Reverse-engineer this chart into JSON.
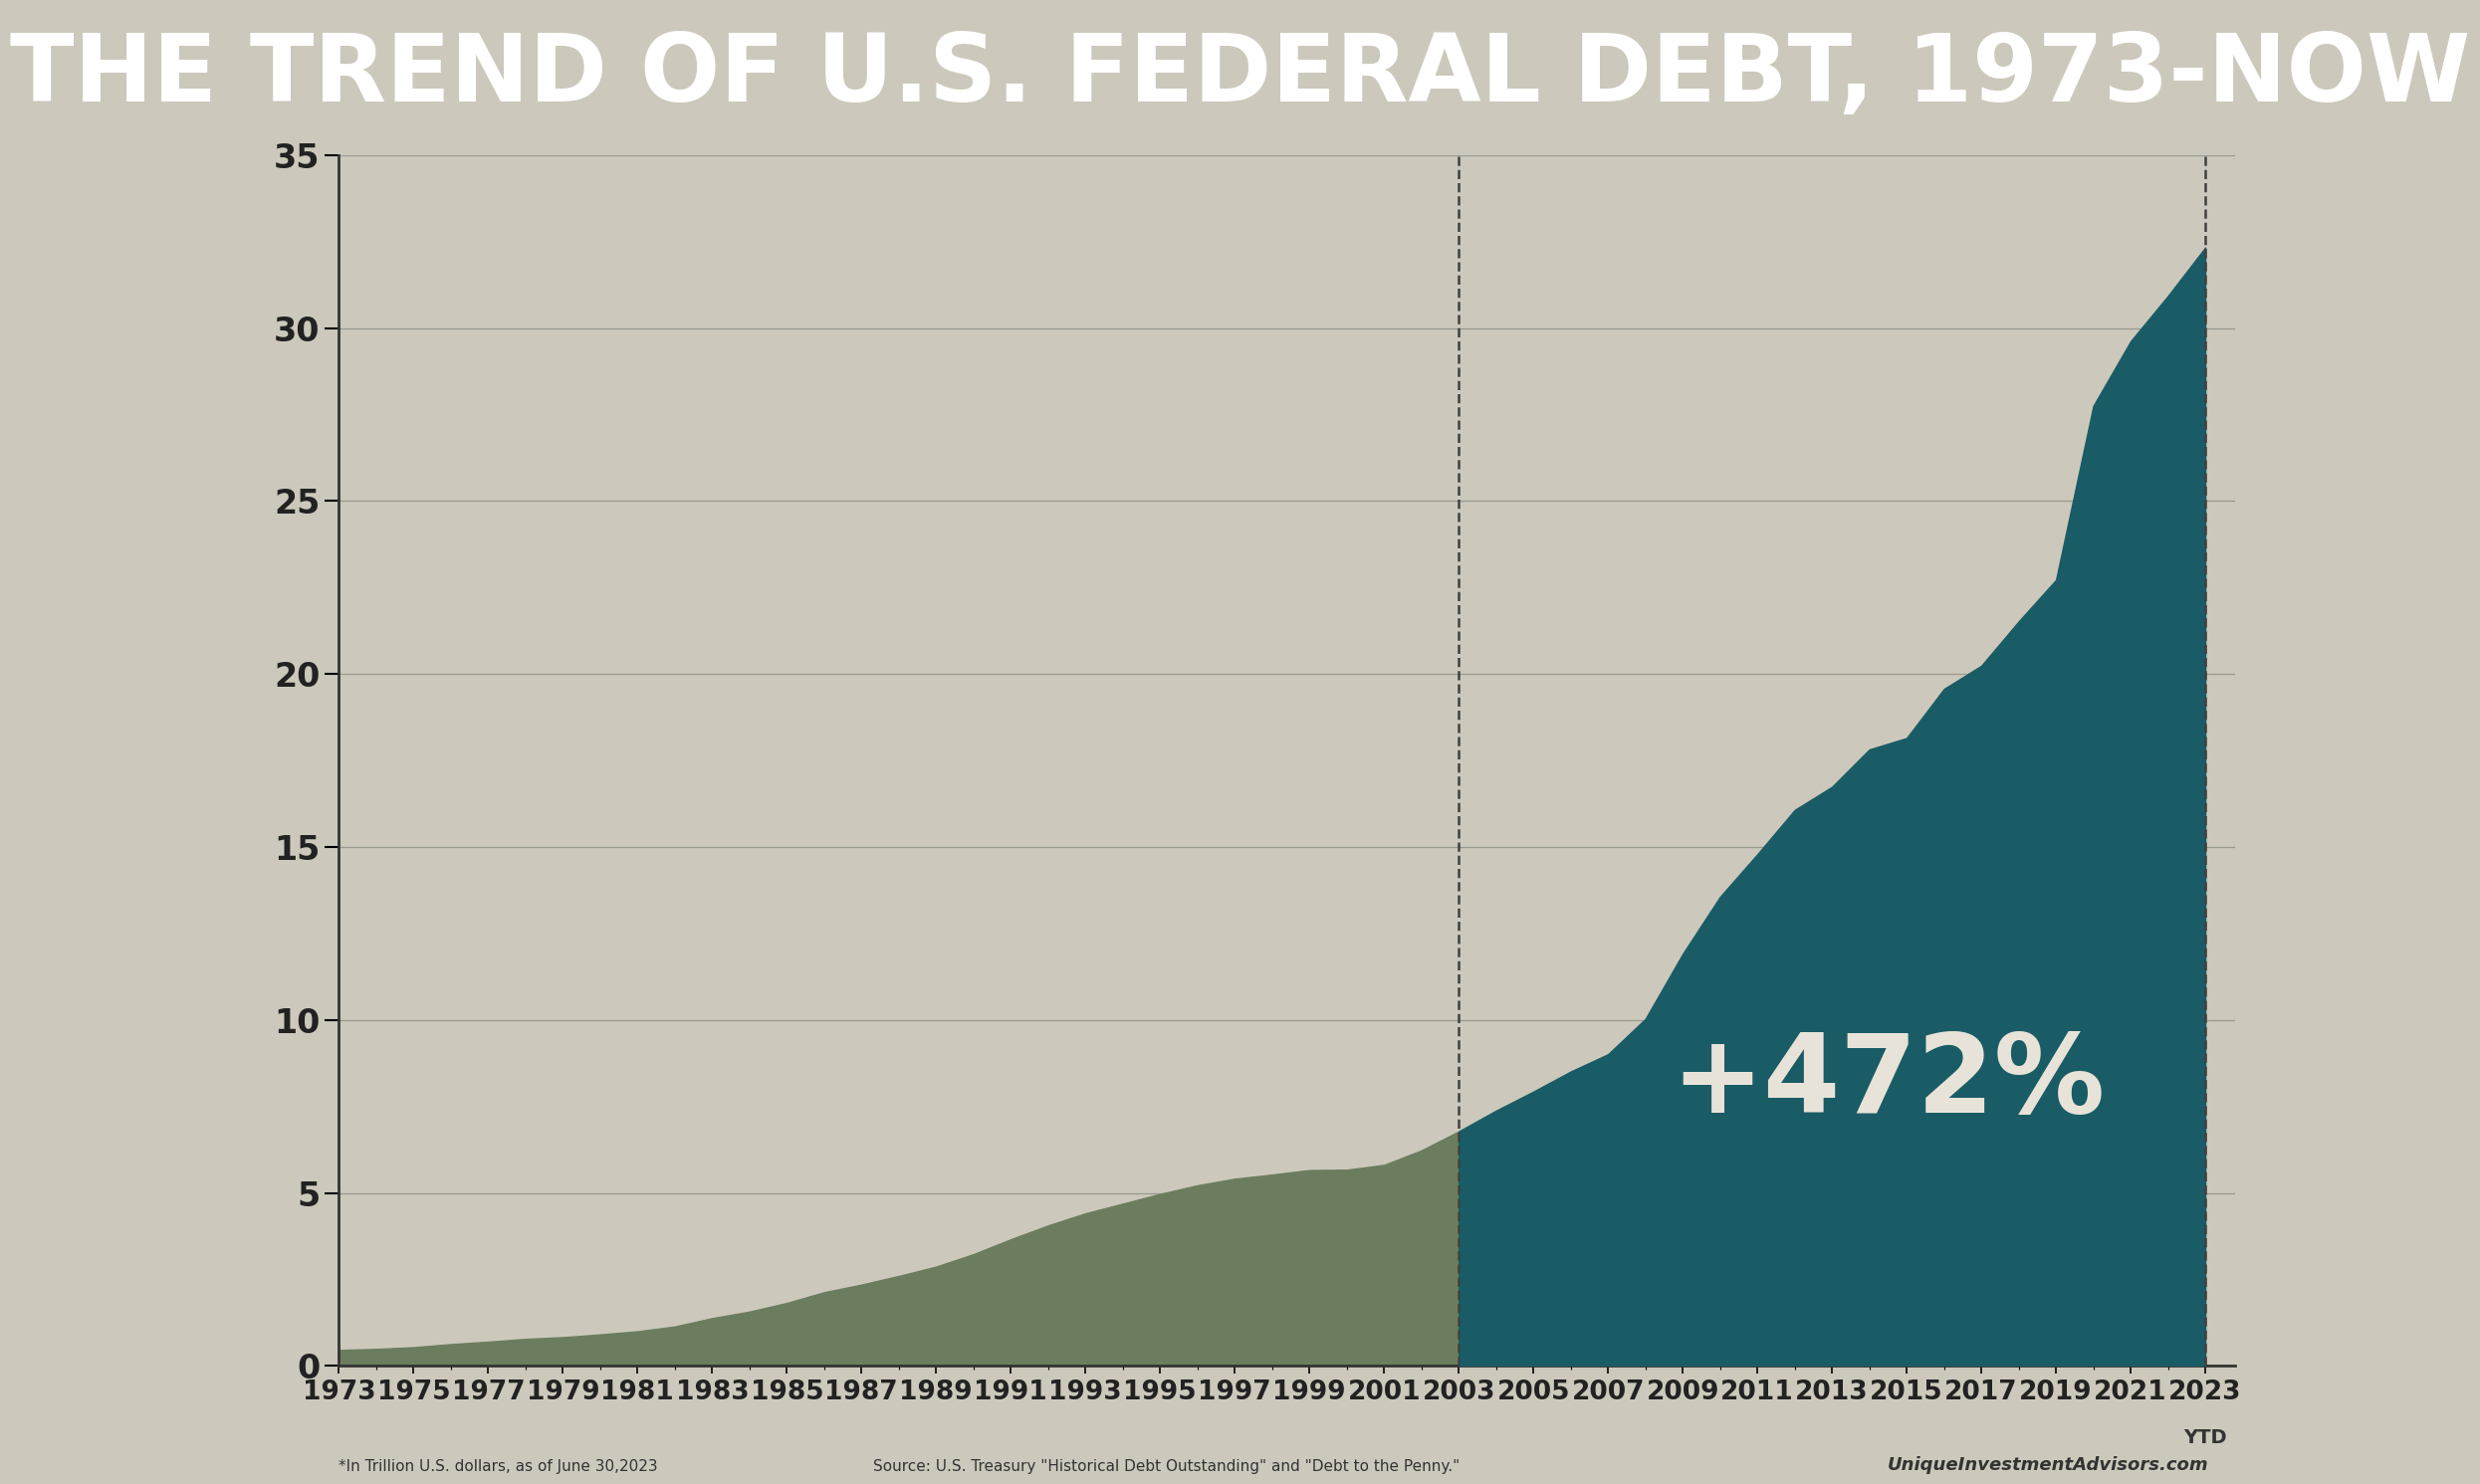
{
  "title": "THE TREND OF U.S. FEDERAL DEBT, 1973-NOW",
  "title_bg_color": "#2A6B6E",
  "title_text_color": "#FFFFFF",
  "bg_color": "#CCC9BC",
  "area_color_old": "#6B7D5E",
  "area_color_new": "#1A5C66",
  "annotation_text": "+472%",
  "annotation_color": "#E8E3D8",
  "footnote_left": "*In Trillion U.S. dollars, as of June 30,2023",
  "footnote_mid": "Source: U.S. Treasury \"Historical Debt Outstanding\" and \"Debt to the Penny.\"",
  "footnote_right": "UniqueInvestmentAdvisors.com",
  "split_year": 2003,
  "ytd_label": "YTD",
  "ylim": [
    0,
    35
  ],
  "yticks": [
    0,
    5,
    10,
    15,
    20,
    25,
    30,
    35
  ],
  "years": [
    1973,
    1974,
    1975,
    1976,
    1977,
    1978,
    1979,
    1980,
    1981,
    1982,
    1983,
    1984,
    1985,
    1986,
    1987,
    1988,
    1989,
    1990,
    1991,
    1992,
    1993,
    1994,
    1995,
    1996,
    1997,
    1998,
    1999,
    2000,
    2001,
    2002,
    2003,
    2004,
    2005,
    2006,
    2007,
    2008,
    2009,
    2010,
    2011,
    2012,
    2013,
    2014,
    2015,
    2016,
    2017,
    2018,
    2019,
    2020,
    2021,
    2022,
    2023
  ],
  "debt": [
    0.46,
    0.49,
    0.54,
    0.63,
    0.7,
    0.78,
    0.83,
    0.91,
    1.0,
    1.14,
    1.38,
    1.57,
    1.82,
    2.13,
    2.35,
    2.6,
    2.87,
    3.23,
    3.66,
    4.06,
    4.41,
    4.69,
    4.97,
    5.22,
    5.41,
    5.53,
    5.66,
    5.67,
    5.81,
    6.23,
    6.78,
    7.38,
    7.93,
    8.51,
    9.01,
    10.03,
    11.91,
    13.56,
    14.79,
    16.07,
    16.74,
    17.82,
    18.15,
    19.57,
    20.24,
    21.52,
    22.72,
    27.75,
    29.62,
    30.93,
    32.33
  ],
  "xtick_labels": [
    "1973",
    "1975",
    "1977",
    "1979",
    "1981",
    "1983",
    "1985",
    "1987",
    "1989",
    "1991",
    "1993",
    "1995",
    "1997",
    "1999",
    "2001",
    "2003",
    "2005",
    "2007",
    "2009",
    "2011",
    "2013",
    "2015",
    "2017",
    "2019",
    "2021",
    "2023"
  ],
  "xtick_years": [
    1973,
    1975,
    1977,
    1979,
    1981,
    1983,
    1985,
    1987,
    1989,
    1991,
    1993,
    1995,
    1997,
    1999,
    2001,
    2003,
    2005,
    2007,
    2009,
    2011,
    2013,
    2015,
    2017,
    2019,
    2021,
    2023
  ],
  "xlim_left": 1973,
  "xlim_right": 2023.8
}
